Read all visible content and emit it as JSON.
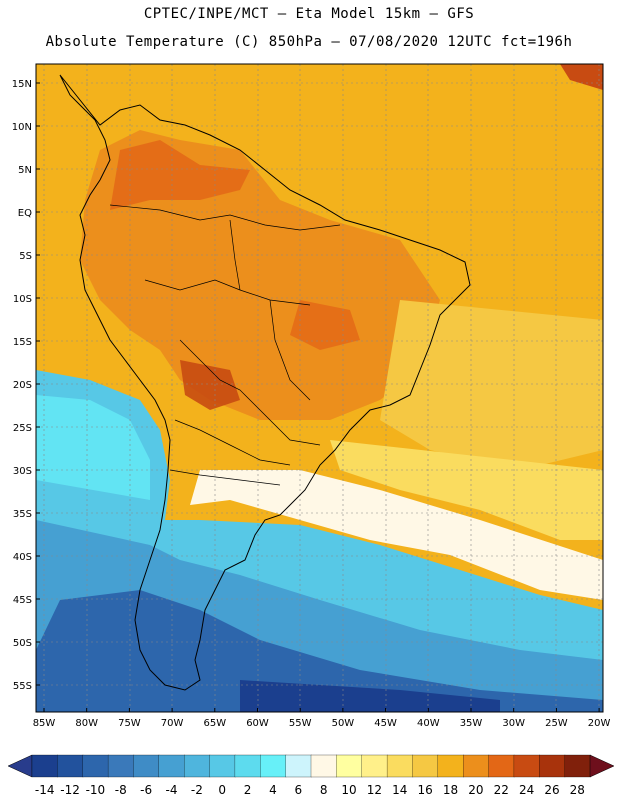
{
  "header": {
    "line1": "CPTEC/INPE/MCT –  Eta Model 15km – GFS",
    "line2": "Absolute Temperature (C) 850hPa – 07/08/2020 12UTC fct=196h"
  },
  "map": {
    "lat_labels": [
      "15N",
      "10N",
      "5N",
      "EQ",
      "5S",
      "10S",
      "15S",
      "20S",
      "25S",
      "30S",
      "35S",
      "40S",
      "45S",
      "50S",
      "55S"
    ],
    "lon_labels": [
      "85W",
      "80W",
      "75W",
      "70W",
      "65W",
      "60W",
      "55W",
      "50W",
      "45W",
      "40W",
      "35W",
      "30W",
      "25W",
      "20W"
    ]
  },
  "colorbar": {
    "labels": [
      "-14",
      "-12",
      "-10",
      "-8",
      "-6",
      "-4",
      "-2",
      "0",
      "2",
      "4",
      "6",
      "8",
      "10",
      "12",
      "14",
      "16",
      "18",
      "20",
      "22",
      "24",
      "26",
      "28"
    ],
    "colors": [
      "#1b3f8e",
      "#22529d",
      "#2d66ac",
      "#3a79ba",
      "#3f8cc6",
      "#46a0d2",
      "#4fb5dd",
      "#57c8e6",
      "#5ddbee",
      "#67f0f8",
      "#cdf4fc",
      "#fff8e6",
      "#ffffa0",
      "#fff08a",
      "#fadc5f",
      "#f5c843",
      "#f3b21c",
      "#ec8f1c",
      "#e36716",
      "#c84b12",
      "#a8330c",
      "#80200b"
    ],
    "under_color": "#283c8c",
    "over_color": "#6e0f1c"
  }
}
